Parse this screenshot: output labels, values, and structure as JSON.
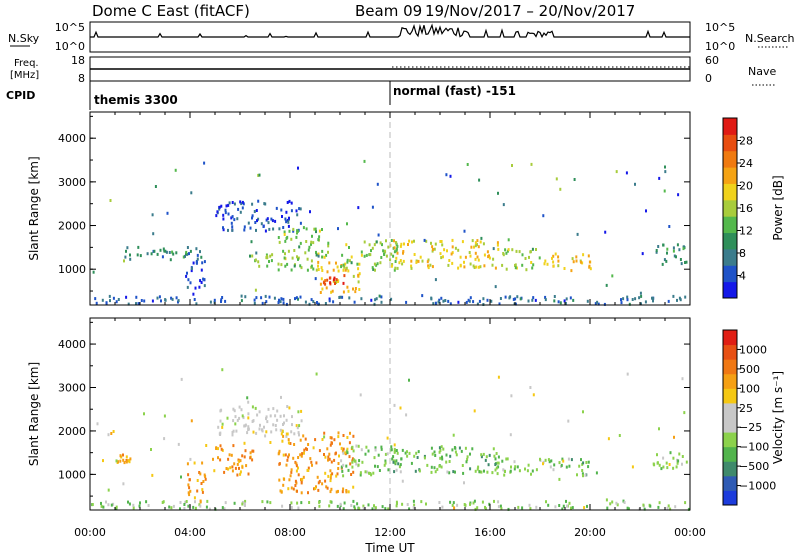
{
  "header": {
    "station": "Dome C East (fitACF)",
    "beam": "Beam 09",
    "dates": "19/Nov/2017 – 20/Nov/2017"
  },
  "strips": {
    "nsky_label": "N.Sky",
    "nsky_ticks": [
      "10^5",
      "10^0"
    ],
    "nsearch_label": "N.Search",
    "nsearch_ticks": [
      "10^5",
      "10^0"
    ],
    "freq_label_1": "Freq.",
    "freq_label_2": "[MHz]",
    "freq_ticks": [
      "18",
      "8"
    ],
    "nave_label": "Nave",
    "nave_ticks": [
      "60",
      "0"
    ],
    "cpid_label": "CPID",
    "cpid_left": "themis 3300",
    "cpid_right": "normal (fast) -151"
  },
  "x_axis": {
    "ticks": [
      "00:00",
      "04:00",
      "08:00",
      "12:00",
      "16:00",
      "20:00",
      "00:00"
    ],
    "label": "Time UT"
  },
  "chart_data": [
    {
      "type": "heatmap",
      "name": "power",
      "ylabel": "Slant Range [km]",
      "yticks": [
        1000,
        2000,
        3000,
        4000
      ],
      "ylim": [
        180,
        4600
      ],
      "xlim": [
        0,
        24
      ],
      "colorbar": {
        "label": "Power [dB]",
        "ticks": [
          "4",
          "8",
          "12",
          "16",
          "20",
          "24",
          "28"
        ],
        "colors": [
          "#1418e8",
          "#1f53c8",
          "#3b7c8c",
          "#2f8f5a",
          "#54b84c",
          "#a8cc3c",
          "#f0d21c",
          "#f5a314",
          "#f07a10",
          "#e84d10",
          "#e01a14"
        ]
      },
      "features": [
        {
          "t0": 0.0,
          "t1": 24.0,
          "r0": 180,
          "r1": 420,
          "level": 0.15
        },
        {
          "t0": 1.2,
          "t1": 4.5,
          "r0": 1250,
          "r1": 1550,
          "level": 0.25
        },
        {
          "t0": 3.8,
          "t1": 4.6,
          "r0": 400,
          "r1": 1300,
          "level": 0.1
        },
        {
          "t0": 5.0,
          "t1": 8.5,
          "r0": 1900,
          "r1": 2600,
          "level": 0.1
        },
        {
          "t0": 6.0,
          "t1": 7.5,
          "r0": 1100,
          "r1": 1400,
          "level": 0.45
        },
        {
          "t0": 7.5,
          "t1": 9.5,
          "r0": 1000,
          "r1": 2000,
          "level": 0.45
        },
        {
          "t0": 9.0,
          "t1": 10.8,
          "r0": 500,
          "r1": 1200,
          "level": 0.65
        },
        {
          "t0": 9.3,
          "t1": 10.2,
          "r0": 650,
          "r1": 900,
          "level": 0.95
        },
        {
          "t0": 10.0,
          "t1": 12.5,
          "r0": 1000,
          "r1": 1700,
          "level": 0.45
        },
        {
          "t0": 12.0,
          "t1": 16.5,
          "r0": 1050,
          "r1": 1700,
          "level": 0.6
        },
        {
          "t0": 16.5,
          "t1": 18.0,
          "r0": 1000,
          "r1": 1500,
          "level": 0.45
        },
        {
          "t0": 18.0,
          "t1": 20.0,
          "r0": 1000,
          "r1": 1400,
          "level": 0.62
        },
        {
          "t0": 22.5,
          "t1": 23.9,
          "r0": 1100,
          "r1": 1600,
          "level": 0.3
        }
      ]
    },
    {
      "type": "heatmap",
      "name": "velocity",
      "ylabel": "Slant Range [km]",
      "yticks": [
        1000,
        2000,
        3000,
        4000
      ],
      "ylim": [
        180,
        4600
      ],
      "xlim": [
        0,
        24
      ],
      "colorbar": {
        "label": "Velocity [m s⁻¹]",
        "ticks": [
          "1000",
          "500",
          "100",
          "25",
          "−25",
          "−100",
          "−500",
          "−1000"
        ],
        "colors": [
          "#1c3cdc",
          "#2f5bb4",
          "#3f8a6c",
          "#52b44c",
          "#8cd24c",
          "#c8c8c8",
          "#c8c8c8",
          "#f5c814",
          "#f5a014",
          "#f07814",
          "#e85014",
          "#e01e14"
        ]
      },
      "features": [
        {
          "t0": 0.0,
          "t1": 24.0,
          "r0": 180,
          "r1": 420,
          "level": 0.35
        },
        {
          "t0": 1.0,
          "t1": 1.6,
          "r0": 1300,
          "r1": 1500,
          "level": 0.7
        },
        {
          "t0": 3.8,
          "t1": 4.6,
          "r0": 400,
          "r1": 1300,
          "level": 0.75
        },
        {
          "t0": 4.8,
          "t1": 6.5,
          "r0": 1000,
          "r1": 1700,
          "level": 0.75
        },
        {
          "t0": 5.0,
          "t1": 8.5,
          "r0": 1900,
          "r1": 2600,
          "level": 0.5
        },
        {
          "t0": 7.5,
          "t1": 10.5,
          "r0": 600,
          "r1": 2000,
          "level": 0.75
        },
        {
          "t0": 10.0,
          "t1": 12.5,
          "r0": 1000,
          "r1": 1700,
          "level": 0.35
        },
        {
          "t0": 12.0,
          "t1": 16.5,
          "r0": 1050,
          "r1": 1700,
          "level": 0.3
        },
        {
          "t0": 16.5,
          "t1": 18.0,
          "r0": 1000,
          "r1": 1400,
          "level": 0.35
        },
        {
          "t0": 18.0,
          "t1": 20.0,
          "r0": 1000,
          "r1": 1400,
          "level": 0.32
        },
        {
          "t0": 22.5,
          "t1": 23.9,
          "r0": 1150,
          "r1": 1600,
          "level": 0.35
        }
      ]
    }
  ]
}
